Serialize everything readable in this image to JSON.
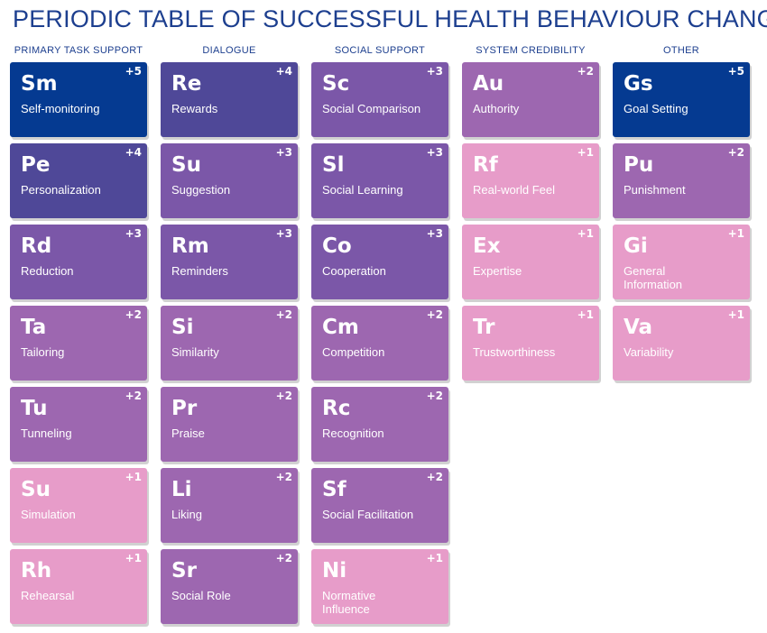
{
  "title": "PERIODIC TABLE OF SUCCESSFUL HEALTH BEHAVIOUR CHANGE",
  "palette": {
    "score_5": "#053a91",
    "score_4": "#4f4898",
    "score_3": "#7b57a8",
    "score_2": "#9d67b0",
    "score_1": "#e79cc9",
    "title": "#1d3f8f"
  },
  "columns": [
    {
      "header": "PRIMARY TASK SUPPORT",
      "elements": [
        {
          "symbol": "Sm",
          "name": "Self-monitoring",
          "score": "+5"
        },
        {
          "symbol": "Pe",
          "name": "Personalization",
          "score": "+4"
        },
        {
          "symbol": "Rd",
          "name": "Reduction",
          "score": "+3"
        },
        {
          "symbol": "Ta",
          "name": "Tailoring",
          "score": "+2"
        },
        {
          "symbol": "Tu",
          "name": "Tunneling",
          "score": "+2"
        },
        {
          "symbol": "Su",
          "name": "Simulation",
          "score": "+1"
        },
        {
          "symbol": "Rh",
          "name": "Rehearsal",
          "score": "+1"
        }
      ]
    },
    {
      "header": "DIALOGUE",
      "elements": [
        {
          "symbol": "Re",
          "name": "Rewards",
          "score": "+4"
        },
        {
          "symbol": "Su",
          "name": "Suggestion",
          "score": "+3"
        },
        {
          "symbol": "Rm",
          "name": "Reminders",
          "score": "+3"
        },
        {
          "symbol": "Si",
          "name": "Similarity",
          "score": "+2"
        },
        {
          "symbol": "Pr",
          "name": "Praise",
          "score": "+2"
        },
        {
          "symbol": "Li",
          "name": "Liking",
          "score": "+2"
        },
        {
          "symbol": "Sr",
          "name": "Social Role",
          "score": "+2"
        }
      ]
    },
    {
      "header": "SOCIAL SUPPORT",
      "elements": [
        {
          "symbol": "Sc",
          "name": "Social Comparison",
          "score": "+3"
        },
        {
          "symbol": "Sl",
          "name": "Social Learning",
          "score": "+3"
        },
        {
          "symbol": "Co",
          "name": "Cooperation",
          "score": "+3"
        },
        {
          "symbol": "Cm",
          "name": "Competition",
          "score": "+2"
        },
        {
          "symbol": "Rc",
          "name": "Recognition",
          "score": "+2"
        },
        {
          "symbol": "Sf",
          "name": "Social Facilitation",
          "score": "+2"
        },
        {
          "symbol": "Ni",
          "name": "Normative Influence",
          "score": "+1"
        }
      ]
    },
    {
      "header": "SYSTEM CREDIBILITY",
      "elements": [
        {
          "symbol": "Au",
          "name": "Authority",
          "score": "+2"
        },
        {
          "symbol": "Rf",
          "name": "Real-world Feel",
          "score": "+1"
        },
        {
          "symbol": "Ex",
          "name": "Expertise",
          "score": "+1"
        },
        {
          "symbol": "Tr",
          "name": "Trustworthiness",
          "score": "+1"
        }
      ]
    },
    {
      "header": "OTHER",
      "elements": [
        {
          "symbol": "Gs",
          "name": "Goal Setting",
          "score": "+5"
        },
        {
          "symbol": "Pu",
          "name": "Punishment",
          "score": "+2"
        },
        {
          "symbol": "Gi",
          "name": "General Information",
          "score": "+1"
        },
        {
          "symbol": "Va",
          "name": "Variability",
          "score": "+1"
        }
      ]
    }
  ]
}
